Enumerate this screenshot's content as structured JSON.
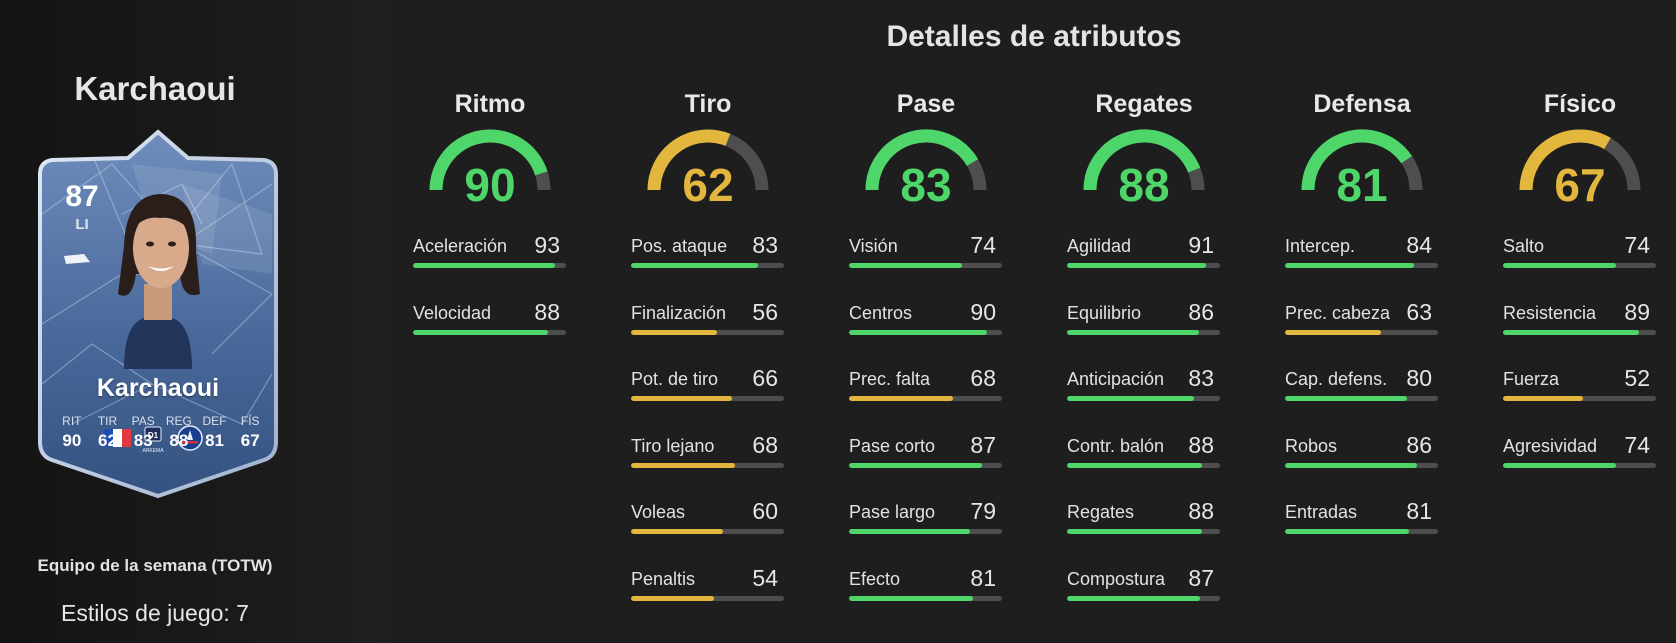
{
  "player": {
    "name": "Karchaoui",
    "event": "Equipo de la semana (TOTW)",
    "playstyles": "Estilos de juego: 7"
  },
  "card": {
    "rating": "87",
    "position": "LI",
    "name": "Karchaoui",
    "stat_labels": [
      "RIT",
      "TIR",
      "PAS",
      "REG",
      "DEF",
      "FÍS"
    ],
    "stat_values": [
      "90",
      "62",
      "83",
      "88",
      "81",
      "67"
    ],
    "icons": [
      "player-photo",
      "boot-icon",
      "france-flag-icon",
      "league-badge-icon",
      "psg-crest-icon"
    ],
    "league_label": "ARKEMA"
  },
  "colors": {
    "high": "#4fd66a",
    "mid": "#e3b63d",
    "track": "#4e4e4e",
    "card": "#3f5f8f"
  },
  "attributes": {
    "title": "Detalles de atributos",
    "categories": [
      {
        "name": "Ritmo",
        "value": "90",
        "tier": "high",
        "stats": [
          {
            "name": "Aceleración",
            "value": "93",
            "tier": "high"
          },
          {
            "name": "Velocidad",
            "value": "88",
            "tier": "high"
          }
        ]
      },
      {
        "name": "Tiro",
        "value": "62",
        "tier": "mid",
        "stats": [
          {
            "name": "Pos. ataque",
            "value": "83",
            "tier": "high"
          },
          {
            "name": "Finalización",
            "value": "56",
            "tier": "mid"
          },
          {
            "name": "Pot. de tiro",
            "value": "66",
            "tier": "mid"
          },
          {
            "name": "Tiro lejano",
            "value": "68",
            "tier": "mid"
          },
          {
            "name": "Voleas",
            "value": "60",
            "tier": "mid"
          },
          {
            "name": "Penaltis",
            "value": "54",
            "tier": "mid"
          }
        ]
      },
      {
        "name": "Pase",
        "value": "83",
        "tier": "high",
        "stats": [
          {
            "name": "Visión",
            "value": "74",
            "tier": "high"
          },
          {
            "name": "Centros",
            "value": "90",
            "tier": "high"
          },
          {
            "name": "Prec. falta",
            "value": "68",
            "tier": "mid"
          },
          {
            "name": "Pase corto",
            "value": "87",
            "tier": "high"
          },
          {
            "name": "Pase largo",
            "value": "79",
            "tier": "high"
          },
          {
            "name": "Efecto",
            "value": "81",
            "tier": "high"
          }
        ]
      },
      {
        "name": "Regates",
        "value": "88",
        "tier": "high",
        "stats": [
          {
            "name": "Agilidad",
            "value": "91",
            "tier": "high"
          },
          {
            "name": "Equilibrio",
            "value": "86",
            "tier": "high"
          },
          {
            "name": "Anticipación",
            "value": "83",
            "tier": "high"
          },
          {
            "name": "Contr. balón",
            "value": "88",
            "tier": "high"
          },
          {
            "name": "Regates",
            "value": "88",
            "tier": "high"
          },
          {
            "name": "Compostura",
            "value": "87",
            "tier": "high"
          }
        ]
      },
      {
        "name": "Defensa",
        "value": "81",
        "tier": "high",
        "stats": [
          {
            "name": "Intercep.",
            "value": "84",
            "tier": "high"
          },
          {
            "name": "Prec. cabeza",
            "value": "63",
            "tier": "mid"
          },
          {
            "name": "Cap. defens.",
            "value": "80",
            "tier": "high"
          },
          {
            "name": "Robos",
            "value": "86",
            "tier": "high"
          },
          {
            "name": "Entradas",
            "value": "81",
            "tier": "high"
          }
        ]
      },
      {
        "name": "Físico",
        "value": "67",
        "tier": "mid",
        "stats": [
          {
            "name": "Salto",
            "value": "74",
            "tier": "high"
          },
          {
            "name": "Resistencia",
            "value": "89",
            "tier": "high"
          },
          {
            "name": "Fuerza",
            "value": "52",
            "tier": "mid"
          },
          {
            "name": "Agresividad",
            "value": "74",
            "tier": "high"
          }
        ]
      }
    ]
  }
}
